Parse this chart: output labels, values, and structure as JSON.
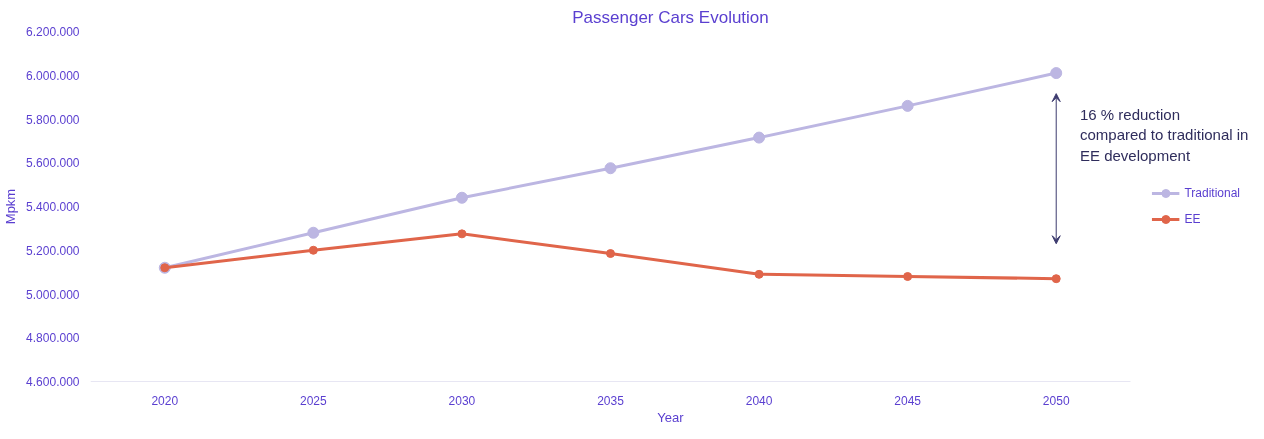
{
  "chart_data": {
    "type": "line",
    "title": "Passenger Cars Evolution",
    "xlabel": "Year",
    "ylabel": "Mpkm",
    "x": [
      2020,
      2025,
      2030,
      2035,
      2040,
      2045,
      2050
    ],
    "series": [
      {
        "name": "Traditional",
        "color": "#bcb6e2",
        "values": [
          5120000,
          5280000,
          5440000,
          5575000,
          5715000,
          5860000,
          6010000
        ]
      },
      {
        "name": "EE",
        "color": "#e0654a",
        "values": [
          5120000,
          5200000,
          5275000,
          5185000,
          5090000,
          5080000,
          5070000
        ]
      }
    ],
    "xlim": [
      2017.5,
      2052.5
    ],
    "xticks": [
      2020,
      2025,
      2030,
      2035,
      2040,
      2045,
      2050
    ],
    "ylim": [
      4600000,
      6200000
    ],
    "yticks": [
      {
        "value": 4600000,
        "label": "4.600.000"
      },
      {
        "value": 4800000,
        "label": "4.800.000"
      },
      {
        "value": 5000000,
        "label": "5.000.000"
      },
      {
        "value": 5200000,
        "label": "5.200.000"
      },
      {
        "value": 5400000,
        "label": "5.400.000"
      },
      {
        "value": 5600000,
        "label": "5.600.000"
      },
      {
        "value": 5800000,
        "label": "5.800.000"
      },
      {
        "value": 6000000,
        "label": "6.000.000"
      },
      {
        "value": 6200000,
        "label": "6.200.000"
      }
    ],
    "annotations": [
      "16 % reduction\ncompared to traditional in\nEE development"
    ],
    "marker": "circle",
    "line_style": "solid",
    "grid": false,
    "legend": "right"
  }
}
